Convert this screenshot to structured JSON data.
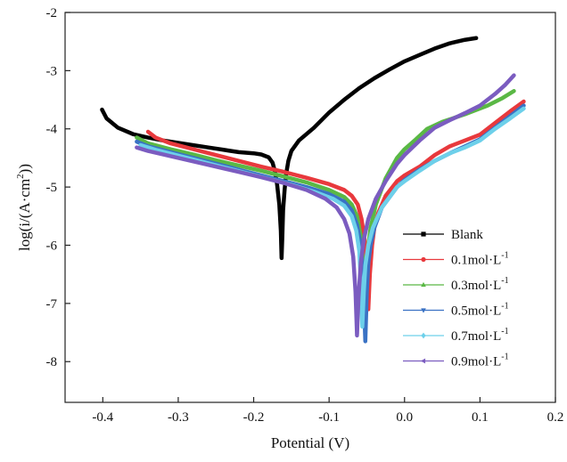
{
  "chart_data": {
    "type": "line",
    "title": "",
    "xlabel": "Potential (V)",
    "ylabel": "log(i/(A·cm",
    "ylabel_sup": "2",
    "ylabel_close": "))",
    "xlim": [
      -0.45,
      0.2
    ],
    "ylim": [
      -8.7,
      -2
    ],
    "xticks": [
      -0.4,
      -0.3,
      -0.2,
      -0.1,
      0.0,
      0.1,
      0.2
    ],
    "xtick_labels": [
      "-0.4",
      "-0.3",
      "-0.2",
      "-0.1",
      "0.0",
      "0.1",
      "0.2"
    ],
    "yticks": [
      -8,
      -7,
      -6,
      -5,
      -4,
      -3,
      -2
    ],
    "ytick_labels": [
      "-8",
      "-7",
      "-6",
      "-5",
      "-4",
      "-3",
      "-2"
    ],
    "grid": false,
    "legend_position": "center-right",
    "series": [
      {
        "name": "Blank",
        "color": "#000000",
        "marker": "square",
        "points": [
          [
            -0.401,
            -3.67
          ],
          [
            -0.395,
            -3.82
          ],
          [
            -0.38,
            -3.98
          ],
          [
            -0.36,
            -4.09
          ],
          [
            -0.34,
            -4.15
          ],
          [
            -0.32,
            -4.2
          ],
          [
            -0.3,
            -4.24
          ],
          [
            -0.28,
            -4.28
          ],
          [
            -0.26,
            -4.32
          ],
          [
            -0.24,
            -4.36
          ],
          [
            -0.22,
            -4.4
          ],
          [
            -0.2,
            -4.42
          ],
          [
            -0.19,
            -4.44
          ],
          [
            -0.18,
            -4.49
          ],
          [
            -0.175,
            -4.58
          ],
          [
            -0.172,
            -4.72
          ],
          [
            -0.169,
            -4.95
          ],
          [
            -0.166,
            -5.3
          ],
          [
            -0.164,
            -5.75
          ],
          [
            -0.163,
            -6.22
          ],
          [
            -0.162,
            -5.85
          ],
          [
            -0.161,
            -5.4
          ],
          [
            -0.159,
            -5.05
          ],
          [
            -0.157,
            -4.78
          ],
          [
            -0.154,
            -4.55
          ],
          [
            -0.15,
            -4.38
          ],
          [
            -0.14,
            -4.2
          ],
          [
            -0.12,
            -3.98
          ],
          [
            -0.1,
            -3.72
          ],
          [
            -0.08,
            -3.5
          ],
          [
            -0.06,
            -3.3
          ],
          [
            -0.04,
            -3.13
          ],
          [
            -0.02,
            -2.98
          ],
          [
            0.0,
            -2.84
          ],
          [
            0.02,
            -2.73
          ],
          [
            0.04,
            -2.62
          ],
          [
            0.06,
            -2.53
          ],
          [
            0.08,
            -2.47
          ],
          [
            0.095,
            -2.44
          ]
        ]
      },
      {
        "name": "0.1mol·L",
        "sup": "-1",
        "color": "#e8393d",
        "marker": "circle",
        "points": [
          [
            -0.34,
            -4.05
          ],
          [
            -0.33,
            -4.15
          ],
          [
            -0.31,
            -4.25
          ],
          [
            -0.28,
            -4.35
          ],
          [
            -0.25,
            -4.45
          ],
          [
            -0.22,
            -4.55
          ],
          [
            -0.19,
            -4.65
          ],
          [
            -0.16,
            -4.74
          ],
          [
            -0.13,
            -4.84
          ],
          [
            -0.1,
            -4.95
          ],
          [
            -0.08,
            -5.05
          ],
          [
            -0.07,
            -5.15
          ],
          [
            -0.062,
            -5.3
          ],
          [
            -0.057,
            -5.55
          ],
          [
            -0.053,
            -5.9
          ],
          [
            -0.05,
            -6.4
          ],
          [
            -0.048,
            -7.1
          ],
          [
            -0.046,
            -6.5
          ],
          [
            -0.043,
            -6.0
          ],
          [
            -0.04,
            -5.7
          ],
          [
            -0.035,
            -5.45
          ],
          [
            -0.025,
            -5.15
          ],
          [
            -0.01,
            -4.9
          ],
          [
            0.0,
            -4.8
          ],
          [
            0.02,
            -4.65
          ],
          [
            0.04,
            -4.45
          ],
          [
            0.06,
            -4.3
          ],
          [
            0.08,
            -4.2
          ],
          [
            0.1,
            -4.1
          ],
          [
            0.12,
            -3.9
          ],
          [
            0.14,
            -3.7
          ],
          [
            0.158,
            -3.53
          ]
        ]
      },
      {
        "name": "0.3mol·L",
        "sup": "-1",
        "color": "#5ab845",
        "marker": "triangle-up",
        "points": [
          [
            -0.355,
            -4.15
          ],
          [
            -0.34,
            -4.25
          ],
          [
            -0.31,
            -4.35
          ],
          [
            -0.28,
            -4.44
          ],
          [
            -0.25,
            -4.54
          ],
          [
            -0.22,
            -4.63
          ],
          [
            -0.19,
            -4.72
          ],
          [
            -0.16,
            -4.82
          ],
          [
            -0.13,
            -4.92
          ],
          [
            -0.1,
            -5.05
          ],
          [
            -0.08,
            -5.17
          ],
          [
            -0.07,
            -5.3
          ],
          [
            -0.063,
            -5.5
          ],
          [
            -0.058,
            -5.85
          ],
          [
            -0.055,
            -6.3
          ],
          [
            -0.053,
            -7.3
          ],
          [
            -0.051,
            -6.6
          ],
          [
            -0.049,
            -6.1
          ],
          [
            -0.045,
            -5.7
          ],
          [
            -0.038,
            -5.3
          ],
          [
            -0.025,
            -4.85
          ],
          [
            -0.01,
            -4.5
          ],
          [
            0.0,
            -4.35
          ],
          [
            0.015,
            -4.18
          ],
          [
            0.03,
            -4.0
          ],
          [
            0.05,
            -3.88
          ],
          [
            0.08,
            -3.75
          ],
          [
            0.11,
            -3.6
          ],
          [
            0.13,
            -3.47
          ],
          [
            0.145,
            -3.35
          ]
        ]
      },
      {
        "name": "0.5mol·L",
        "sup": "-1",
        "color": "#3a72c4",
        "marker": "triangle-down",
        "points": [
          [
            -0.355,
            -4.22
          ],
          [
            -0.34,
            -4.3
          ],
          [
            -0.31,
            -4.4
          ],
          [
            -0.28,
            -4.5
          ],
          [
            -0.25,
            -4.6
          ],
          [
            -0.22,
            -4.7
          ],
          [
            -0.19,
            -4.8
          ],
          [
            -0.16,
            -4.9
          ],
          [
            -0.13,
            -5.0
          ],
          [
            -0.1,
            -5.12
          ],
          [
            -0.08,
            -5.25
          ],
          [
            -0.07,
            -5.4
          ],
          [
            -0.063,
            -5.65
          ],
          [
            -0.058,
            -6.0
          ],
          [
            -0.055,
            -6.5
          ],
          [
            -0.052,
            -7.65
          ],
          [
            -0.05,
            -6.8
          ],
          [
            -0.048,
            -6.3
          ],
          [
            -0.045,
            -6.0
          ],
          [
            -0.04,
            -5.7
          ],
          [
            -0.03,
            -5.35
          ],
          [
            -0.01,
            -5.0
          ],
          [
            0.0,
            -4.88
          ],
          [
            0.02,
            -4.7
          ],
          [
            0.04,
            -4.55
          ],
          [
            0.06,
            -4.42
          ],
          [
            0.08,
            -4.3
          ],
          [
            0.1,
            -4.18
          ],
          [
            0.12,
            -3.98
          ],
          [
            0.14,
            -3.78
          ],
          [
            0.158,
            -3.6
          ]
        ]
      },
      {
        "name": "0.7mol·L",
        "sup": "-1",
        "color": "#6dd0ea",
        "marker": "diamond",
        "points": [
          [
            -0.35,
            -4.28
          ],
          [
            -0.33,
            -4.36
          ],
          [
            -0.3,
            -4.46
          ],
          [
            -0.27,
            -4.56
          ],
          [
            -0.24,
            -4.66
          ],
          [
            -0.21,
            -4.76
          ],
          [
            -0.18,
            -4.86
          ],
          [
            -0.15,
            -4.96
          ],
          [
            -0.12,
            -5.08
          ],
          [
            -0.095,
            -5.2
          ],
          [
            -0.08,
            -5.32
          ],
          [
            -0.07,
            -5.5
          ],
          [
            -0.064,
            -5.75
          ],
          [
            -0.06,
            -6.1
          ],
          [
            -0.058,
            -6.6
          ],
          [
            -0.056,
            -7.4
          ],
          [
            -0.054,
            -6.8
          ],
          [
            -0.052,
            -6.35
          ],
          [
            -0.048,
            -6.0
          ],
          [
            -0.042,
            -5.7
          ],
          [
            -0.03,
            -5.35
          ],
          [
            -0.01,
            -5.0
          ],
          [
            0.0,
            -4.9
          ],
          [
            0.02,
            -4.72
          ],
          [
            0.04,
            -4.55
          ],
          [
            0.06,
            -4.42
          ],
          [
            0.08,
            -4.32
          ],
          [
            0.1,
            -4.2
          ],
          [
            0.12,
            -4.0
          ],
          [
            0.14,
            -3.82
          ],
          [
            0.158,
            -3.65
          ]
        ]
      },
      {
        "name": "0.9mol·L",
        "sup": "-1",
        "color": "#7b5cc0",
        "marker": "triangle-left",
        "points": [
          [
            -0.355,
            -4.32
          ],
          [
            -0.34,
            -4.38
          ],
          [
            -0.31,
            -4.47
          ],
          [
            -0.28,
            -4.56
          ],
          [
            -0.25,
            -4.65
          ],
          [
            -0.22,
            -4.74
          ],
          [
            -0.19,
            -4.83
          ],
          [
            -0.16,
            -4.93
          ],
          [
            -0.13,
            -5.05
          ],
          [
            -0.105,
            -5.2
          ],
          [
            -0.09,
            -5.35
          ],
          [
            -0.08,
            -5.55
          ],
          [
            -0.073,
            -5.8
          ],
          [
            -0.068,
            -6.2
          ],
          [
            -0.065,
            -6.8
          ],
          [
            -0.063,
            -7.55
          ],
          [
            -0.061,
            -6.9
          ],
          [
            -0.058,
            -6.3
          ],
          [
            -0.054,
            -5.9
          ],
          [
            -0.048,
            -5.55
          ],
          [
            -0.038,
            -5.2
          ],
          [
            -0.025,
            -4.9
          ],
          [
            -0.01,
            -4.6
          ],
          [
            0.0,
            -4.45
          ],
          [
            0.02,
            -4.2
          ],
          [
            0.04,
            -3.98
          ],
          [
            0.06,
            -3.85
          ],
          [
            0.08,
            -3.73
          ],
          [
            0.1,
            -3.6
          ],
          [
            0.12,
            -3.4
          ],
          [
            0.133,
            -3.25
          ],
          [
            0.145,
            -3.08
          ]
        ]
      }
    ]
  }
}
